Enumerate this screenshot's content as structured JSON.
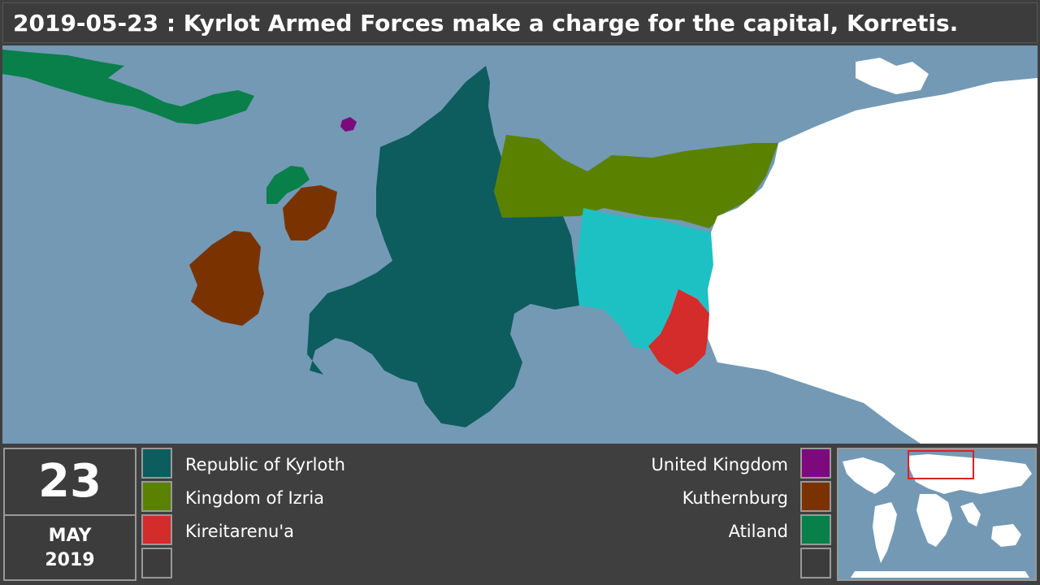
{
  "title": "2019-05-23 : Kyrlot Armed Forces make a charge for the capital, Korretis.",
  "date": {
    "day": "23",
    "month": "MAY",
    "year": "2019"
  },
  "colors": {
    "ocean": "#7399b5",
    "land_unclaimed": "#ffffff",
    "highlight_teal": "#1dc1c3"
  },
  "legend_left": [
    {
      "name": "Republic of Kyrloth",
      "color": "#0d5c5e"
    },
    {
      "name": "Kingdom of Izria",
      "color": "#5a8200"
    },
    {
      "name": "Kireitarenu'a",
      "color": "#d42b2b"
    },
    {
      "name": "",
      "color": "#3c3c3c"
    }
  ],
  "legend_right": [
    {
      "name": "United Kingdom",
      "color": "#7c0a7c"
    },
    {
      "name": "Kuthernburg",
      "color": "#7a3300"
    },
    {
      "name": "Atiland",
      "color": "#097f4a"
    },
    {
      "name": "",
      "color": "#3c3c3c"
    }
  ],
  "minimap": {
    "viewport_color": "#e02020"
  }
}
